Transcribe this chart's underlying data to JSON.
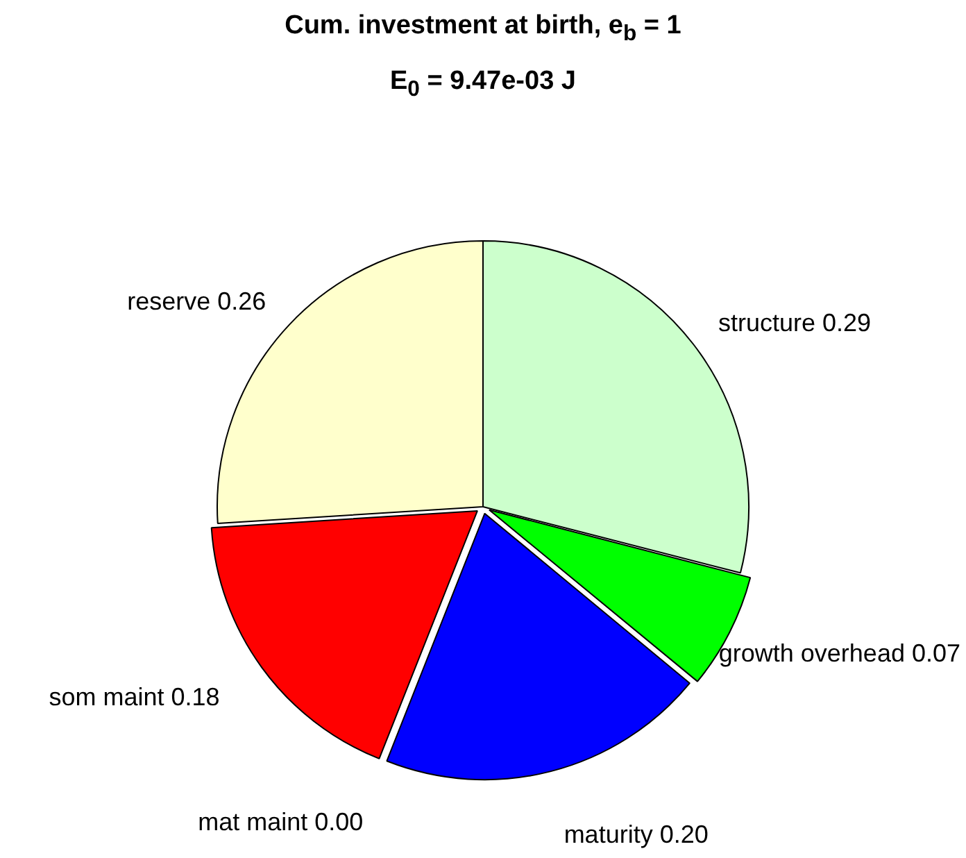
{
  "chart_data": {
    "type": "pie",
    "title": "Cum. investment at birth, e$_{b}$ = 1",
    "subtitle": "E$_{0}$ = 9.47e-03 J",
    "categories": [
      "structure",
      "growth overhead",
      "maturity",
      "mat maint",
      "som maint",
      "reserve"
    ],
    "values": [
      0.29,
      0.07,
      0.2,
      0.0,
      0.18,
      0.26
    ],
    "value_labels": [
      "0.29",
      "0.07",
      "0.20",
      "0.00",
      "0.18",
      "0.26"
    ],
    "colors": [
      "#ccffcc",
      "#00ff00",
      "#0000ff",
      "#00ffff",
      "#ff0000",
      "#ffffcc"
    ],
    "legend": false
  }
}
